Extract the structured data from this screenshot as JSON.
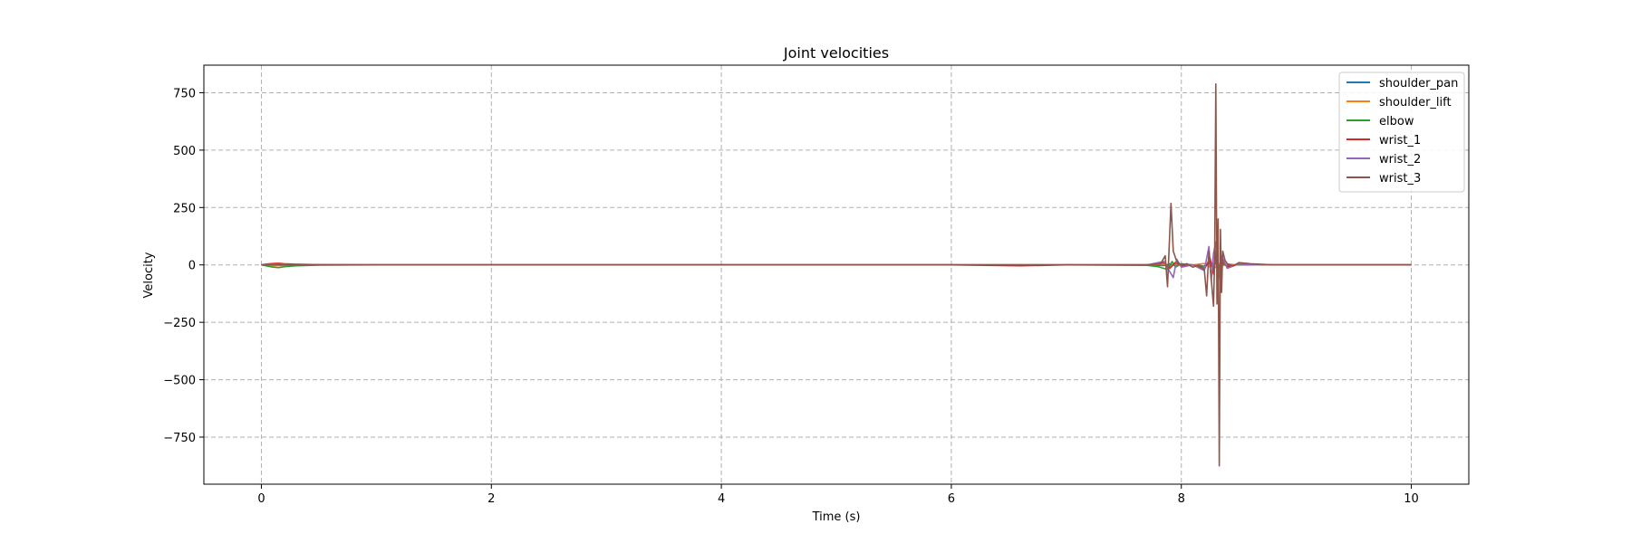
{
  "chart_data": {
    "type": "line",
    "title": "Joint velocities",
    "xlabel": "Time (s)",
    "ylabel": "Velocity",
    "xlim": [
      -0.5,
      10.5
    ],
    "ylim": [
      -955,
      870
    ],
    "xticks": [
      0,
      2,
      4,
      6,
      8,
      10
    ],
    "yticks": [
      -750,
      -500,
      -250,
      0,
      250,
      500,
      750
    ],
    "xtick_labels": [
      "0",
      "2",
      "4",
      "6",
      "8",
      "10"
    ],
    "ytick_labels": [
      "−750",
      "−500",
      "−250",
      "0",
      "250",
      "500",
      "750"
    ],
    "grid": true,
    "grid_style": "dashed",
    "legend_position": "upper right",
    "series": [
      {
        "name": "shoulder_pan",
        "color": "#1f77b4",
        "x": [
          0,
          0.05,
          0.1,
          0.2,
          0.3,
          0.5,
          1,
          2,
          4,
          6,
          7,
          7.7,
          7.85,
          7.9,
          7.95,
          8.0,
          8.1,
          8.2,
          8.25,
          8.28,
          8.3,
          8.32,
          8.35,
          8.4,
          8.5,
          8.6,
          9,
          9.5,
          10
        ],
        "y": [
          0,
          3,
          5,
          3,
          1,
          0,
          0,
          0,
          0,
          0,
          0,
          0,
          -3,
          5,
          -4,
          2,
          0,
          -5,
          8,
          -6,
          10,
          -8,
          5,
          -3,
          1,
          0,
          0,
          0,
          0
        ]
      },
      {
        "name": "shoulder_lift",
        "color": "#ff7f0e",
        "x": [
          0,
          0.05,
          0.1,
          0.2,
          0.3,
          0.5,
          1,
          2,
          4,
          6,
          7,
          7.7,
          7.85,
          7.9,
          7.95,
          8.0,
          8.1,
          8.2,
          8.25,
          8.28,
          8.3,
          8.32,
          8.35,
          8.4,
          8.5,
          8.6,
          9,
          9.5,
          10
        ],
        "y": [
          0,
          -2,
          -4,
          -3,
          -1,
          0,
          0,
          0,
          0,
          0,
          0,
          0,
          4,
          -6,
          5,
          -2,
          0,
          6,
          -10,
          8,
          -12,
          9,
          -6,
          4,
          -1,
          0,
          0,
          0,
          0
        ]
      },
      {
        "name": "elbow",
        "color": "#2ca02c",
        "x": [
          0,
          0.05,
          0.1,
          0.15,
          0.2,
          0.3,
          0.5,
          1,
          2,
          4,
          6,
          7,
          7.7,
          7.8,
          7.88,
          7.92,
          7.95,
          8.0,
          8.1,
          8.2,
          8.25,
          8.28,
          8.3,
          8.32,
          8.35,
          8.4,
          8.5,
          8.6,
          9,
          9.5,
          10
        ],
        "y": [
          0,
          -5,
          -10,
          -12,
          -8,
          -4,
          -1,
          0,
          0,
          0,
          0,
          0,
          -2,
          -8,
          -20,
          15,
          -10,
          5,
          0,
          -12,
          20,
          -15,
          25,
          -20,
          12,
          -8,
          3,
          0,
          0,
          0,
          0
        ]
      },
      {
        "name": "wrist_1",
        "color": "#d62728",
        "x": [
          0,
          0.05,
          0.1,
          0.15,
          0.2,
          0.3,
          0.5,
          1,
          2,
          4,
          6,
          6.6,
          7,
          7.7,
          7.85,
          7.9,
          7.95,
          8.0,
          8.1,
          8.2,
          8.25,
          8.28,
          8.3,
          8.32,
          8.35,
          8.4,
          8.5,
          8.6,
          9,
          9.5,
          10
        ],
        "y": [
          0,
          4,
          6,
          7,
          5,
          3,
          1,
          0,
          0,
          0,
          0,
          -4,
          0,
          0,
          10,
          -15,
          12,
          -5,
          0,
          -20,
          30,
          -40,
          60,
          -50,
          25,
          -10,
          5,
          0,
          0,
          0,
          0
        ]
      },
      {
        "name": "wrist_2",
        "color": "#9467bd",
        "x": [
          0,
          0.05,
          0.1,
          0.2,
          0.3,
          0.5,
          1,
          2,
          4,
          6,
          7,
          7.7,
          7.85,
          7.9,
          7.93,
          7.96,
          8.0,
          8.1,
          8.2,
          8.24,
          8.26,
          8.28,
          8.3,
          8.32,
          8.35,
          8.4,
          8.5,
          8.6,
          9,
          9.5,
          10
        ],
        "y": [
          0,
          2,
          3,
          2,
          1,
          0,
          0,
          0,
          0,
          0,
          0,
          0,
          15,
          -30,
          -55,
          25,
          -10,
          0,
          -25,
          80,
          -70,
          50,
          100,
          -80,
          40,
          -15,
          5,
          0,
          0,
          0,
          0
        ]
      },
      {
        "name": "wrist_3",
        "color": "#8c564b",
        "x": [
          0,
          0.05,
          0.1,
          0.2,
          0.5,
          1,
          2,
          4,
          6,
          7,
          7.7,
          7.82,
          7.86,
          7.88,
          7.91,
          7.93,
          7.96,
          8.0,
          8.05,
          8.1,
          8.15,
          8.2,
          8.22,
          8.24,
          8.26,
          8.28,
          8.29,
          8.3,
          8.31,
          8.32,
          8.33,
          8.34,
          8.35,
          8.36,
          8.38,
          8.4,
          8.45,
          8.5,
          8.6,
          8.8,
          9,
          9.5,
          10
        ],
        "y": [
          0,
          0,
          1,
          0,
          0,
          0,
          0,
          0,
          0,
          0,
          0,
          5,
          40,
          -95,
          268,
          60,
          15,
          0,
          5,
          -10,
          0,
          -20,
          -135,
          60,
          -60,
          -180,
          30,
          788,
          -170,
          200,
          -875,
          155,
          -120,
          60,
          20,
          5,
          -5,
          10,
          5,
          0,
          0,
          0,
          0
        ]
      }
    ]
  }
}
